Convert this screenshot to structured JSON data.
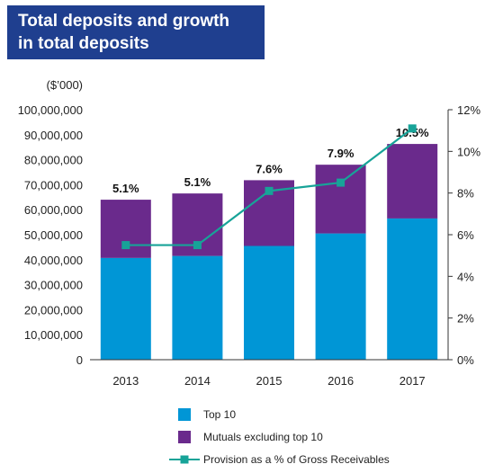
{
  "chart_data": {
    "type": "bar",
    "title": [
      "Total deposits and growth",
      "in total deposits"
    ],
    "y_unit_label": "($’000)",
    "categories": [
      "2013",
      "2014",
      "2015",
      "2016",
      "2017"
    ],
    "ylim": [
      0,
      100000000
    ],
    "yticks": [
      0,
      10000000,
      20000000,
      30000000,
      40000000,
      50000000,
      60000000,
      70000000,
      80000000,
      90000000,
      100000000
    ],
    "ytick_labels": [
      "0",
      "10,000,000",
      "20,000,000",
      "30,000,000",
      "40,000,000",
      "50,000,000",
      "60,000,000",
      "70,000,000",
      "80,000,000",
      "90,000,000",
      "100,000,000"
    ],
    "y2lim": [
      0,
      12
    ],
    "y2ticks": [
      0,
      2,
      4,
      6,
      8,
      10,
      12
    ],
    "y2tick_labels": [
      "0%",
      "2%",
      "4%",
      "6%",
      "8%",
      "10%",
      "12%"
    ],
    "stacked": true,
    "series": [
      {
        "name": "Top 10",
        "type": "bar",
        "color": "#0096d6",
        "values": [
          40700000,
          41500000,
          45500000,
          50500000,
          56500000
        ]
      },
      {
        "name": "Mutuals excluding top 10",
        "type": "bar",
        "color": "#6a2a8c",
        "values": [
          23300000,
          25000000,
          26300000,
          27500000,
          29800000
        ]
      },
      {
        "name": "Provision as a % of Gross Receivables",
        "type": "line",
        "axis": "right",
        "color": "#17a398",
        "values": [
          5.5,
          5.5,
          8.1,
          8.5,
          11.1
        ]
      }
    ],
    "bar_labels": [
      "5.1%",
      "5.1%",
      "7.6%",
      "7.9%",
      "10.5%"
    ],
    "legend_position": "bottom",
    "grid": false
  }
}
